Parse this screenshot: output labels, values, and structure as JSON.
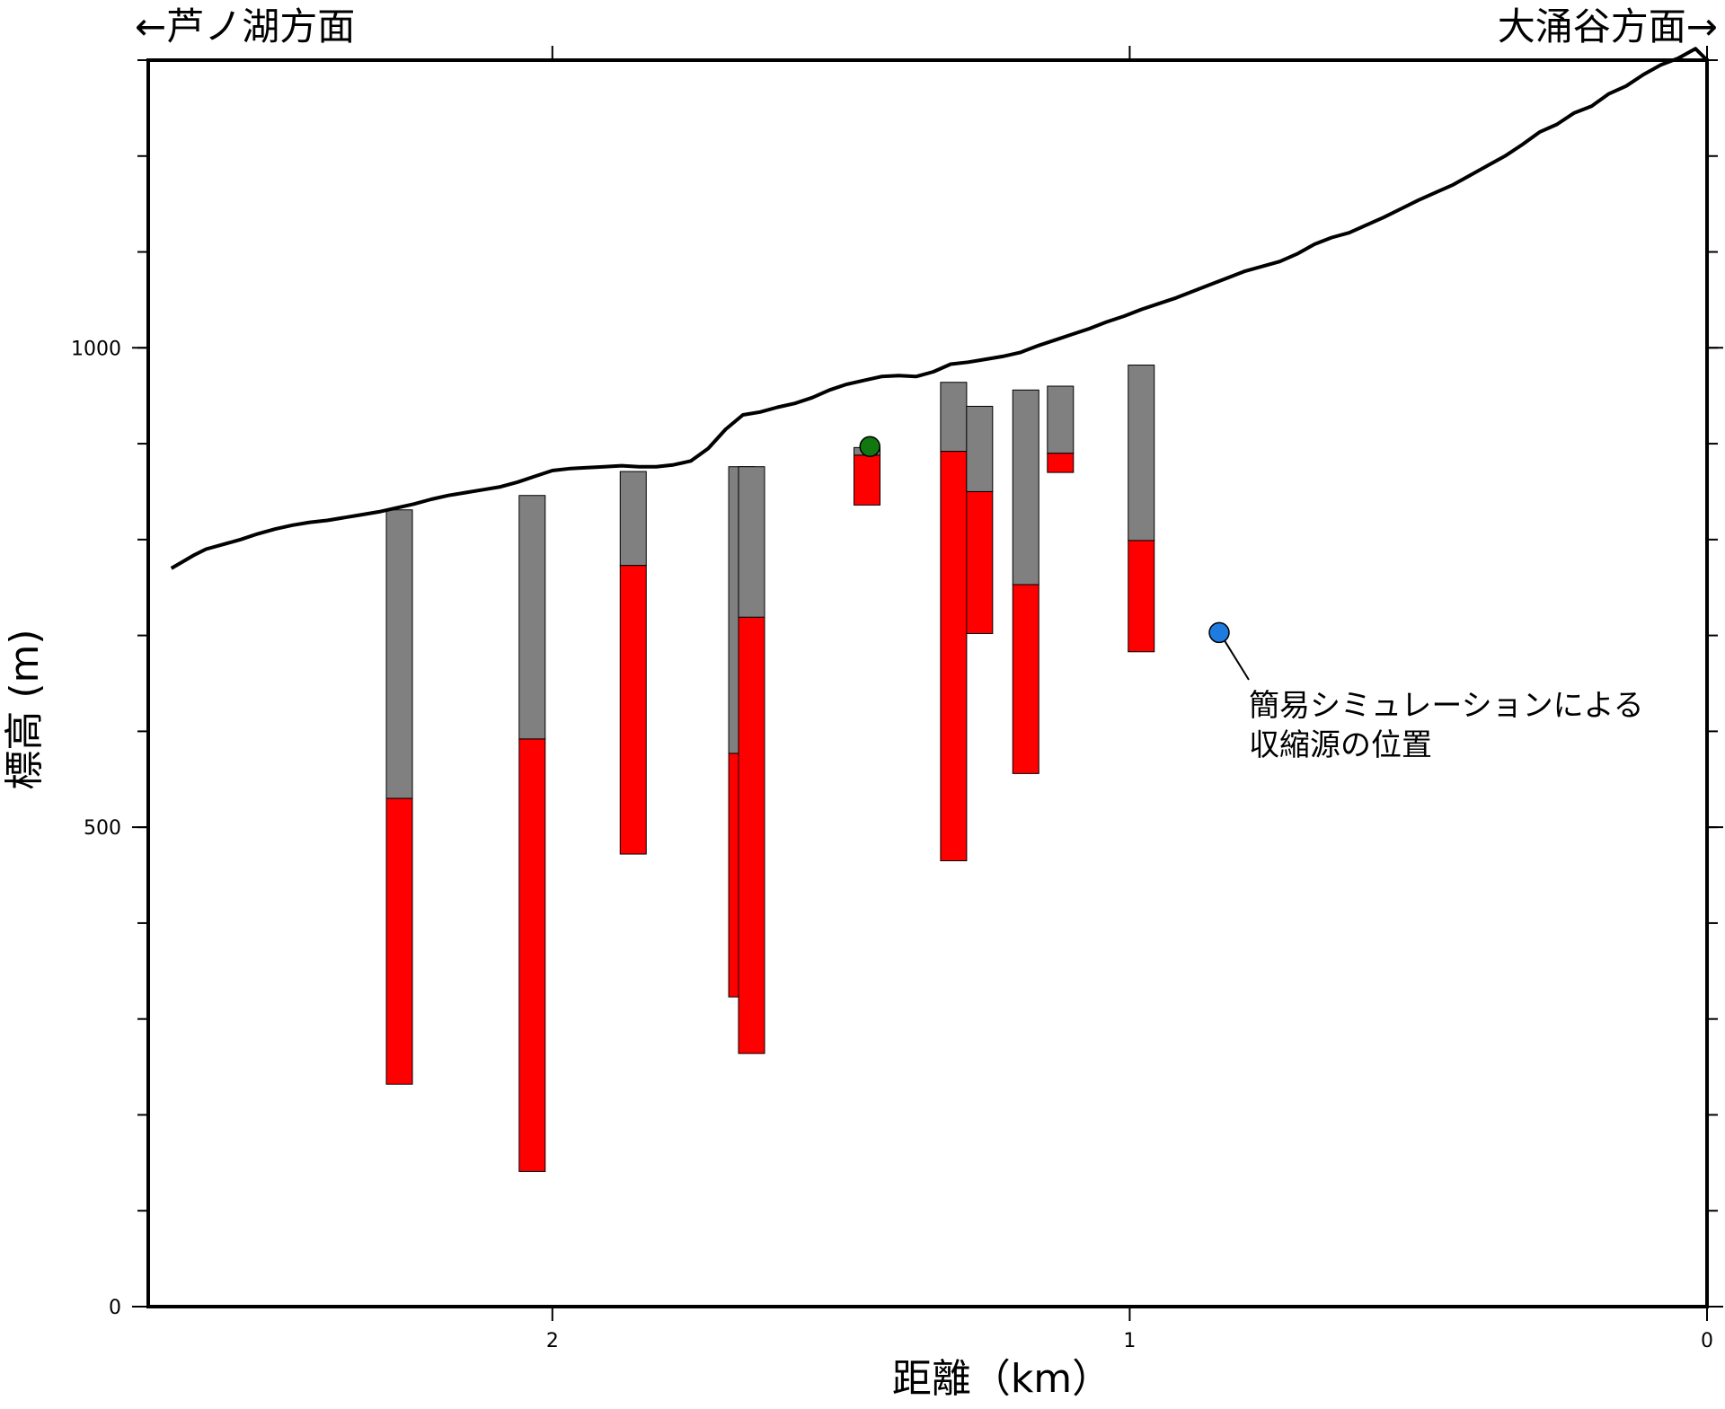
{
  "header": {
    "left_direction": "←芦ノ湖方面",
    "right_direction": "大涌谷方面→"
  },
  "chart_data": {
    "type": "bar",
    "xlabel": "距離（km）",
    "ylabel": "標高 (m)",
    "xlim": [
      2.7,
      0
    ],
    "ylim": [
      0,
      1300
    ],
    "x_ticks": [
      2,
      1,
      0
    ],
    "x_tick_labels": [
      "2",
      "1",
      "0"
    ],
    "y_ticks": [
      0,
      500,
      1000
    ],
    "y_tick_labels": [
      "0",
      "500",
      "1000"
    ],
    "grid": false,
    "colors": {
      "gray": "#808080",
      "red": "#ff0000",
      "terrain": "#000000",
      "green": "#117711",
      "blue": "#1e7be0"
    },
    "terrain": {
      "x": [
        2.66,
        2.64,
        2.62,
        2.6,
        2.57,
        2.54,
        2.51,
        2.48,
        2.45,
        2.42,
        2.39,
        2.36,
        2.33,
        2.3,
        2.27,
        2.24,
        2.21,
        2.18,
        2.15,
        2.12,
        2.09,
        2.06,
        2.03,
        2.0,
        1.97,
        1.94,
        1.91,
        1.88,
        1.85,
        1.82,
        1.79,
        1.76,
        1.73,
        1.7,
        1.67,
        1.64,
        1.61,
        1.58,
        1.55,
        1.52,
        1.49,
        1.46,
        1.43,
        1.4,
        1.37,
        1.34,
        1.31,
        1.28,
        1.25,
        1.22,
        1.19,
        1.16,
        1.13,
        1.1,
        1.07,
        1.04,
        1.01,
        0.98,
        0.95,
        0.92,
        0.89,
        0.86,
        0.83,
        0.8,
        0.77,
        0.74,
        0.71,
        0.68,
        0.65,
        0.62,
        0.59,
        0.56,
        0.53,
        0.5,
        0.47,
        0.44,
        0.41,
        0.38,
        0.35,
        0.32,
        0.29,
        0.26,
        0.23,
        0.2,
        0.17,
        0.14,
        0.11,
        0.08,
        0.05,
        0.02,
        0.0
      ],
      "y": [
        770,
        777,
        784,
        790,
        795,
        800,
        806,
        811,
        815,
        818,
        820,
        823,
        826,
        829,
        833,
        837,
        842,
        846,
        849,
        852,
        855,
        860,
        866,
        872,
        874,
        875,
        876,
        877,
        876,
        876,
        878,
        882,
        895,
        915,
        930,
        933,
        938,
        942,
        948,
        956,
        962,
        966,
        970,
        971,
        970,
        975,
        983,
        985,
        988,
        991,
        995,
        1002,
        1008,
        1014,
        1020,
        1027,
        1033,
        1040,
        1046,
        1052,
        1059,
        1066,
        1073,
        1080,
        1085,
        1090,
        1098,
        1108,
        1115,
        1120,
        1128,
        1136,
        1145,
        1154,
        1162,
        1170,
        1180,
        1190,
        1200,
        1212,
        1225,
        1233,
        1245,
        1252,
        1265,
        1273,
        1285,
        1295,
        1302,
        1312,
        1300
      ]
    },
    "boreholes": [
      {
        "x": 2.265,
        "top": 831,
        "boundary": 530,
        "bottom": 232
      },
      {
        "x": 2.035,
        "top": 846,
        "boundary": 592,
        "bottom": 141
      },
      {
        "x": 1.86,
        "top": 871,
        "boundary": 773,
        "bottom": 472
      },
      {
        "x": 1.672,
        "top": 876,
        "boundary": 577,
        "bottom": 323
      },
      {
        "x": 1.655,
        "top": 876,
        "boundary": 719,
        "bottom": 264
      },
      {
        "x": 1.455,
        "top": 896,
        "boundary": 888,
        "bottom": 836
      },
      {
        "x": 1.305,
        "top": 964,
        "boundary": 892,
        "bottom": 465
      },
      {
        "x": 1.26,
        "top": 939,
        "boundary": 850,
        "bottom": 702
      },
      {
        "x": 1.18,
        "top": 956,
        "boundary": 753,
        "bottom": 556
      },
      {
        "x": 1.12,
        "top": 960,
        "boundary": 890,
        "bottom": 870
      },
      {
        "x": 0.98,
        "top": 982,
        "boundary": 799,
        "bottom": 683
      }
    ],
    "markers": [
      {
        "x": 1.45,
        "y": 897,
        "color": "green"
      },
      {
        "x": 0.845,
        "y": 703,
        "color": "blue"
      }
    ],
    "annotation": {
      "line1": "簡易シミュレーションによる",
      "line2": "収縮源の位置"
    }
  }
}
